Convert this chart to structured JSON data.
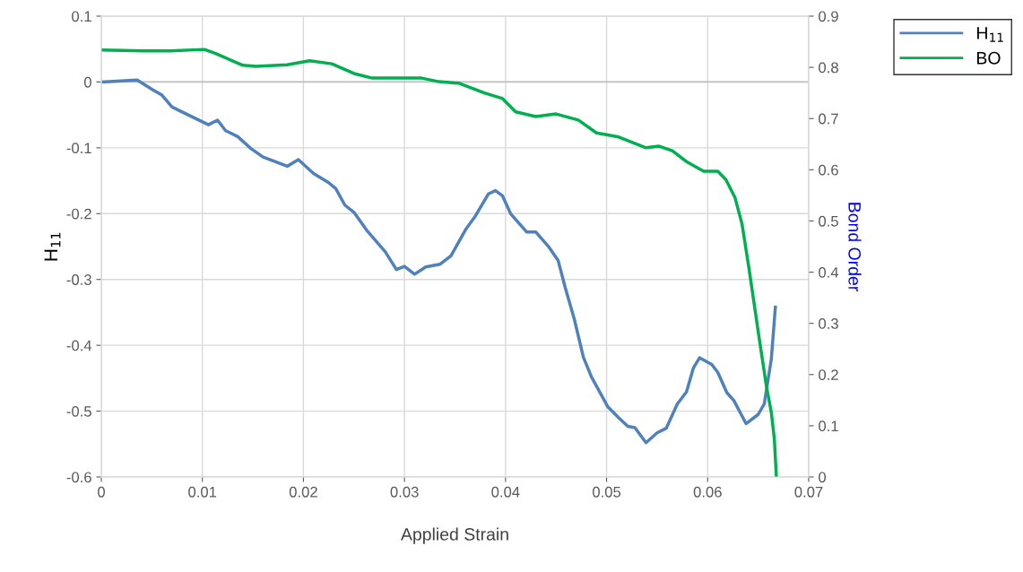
{
  "chart_data": {
    "type": "line",
    "xlabel": "Applied Strain",
    "ylabel": "H$_{11}$",
    "y2label": "Bond Order",
    "xlim": [
      0,
      0.07
    ],
    "xticks": [
      0,
      0.01,
      0.02,
      0.03,
      0.04,
      0.05,
      0.06,
      0.07
    ],
    "ylim": [
      -0.6,
      0.1
    ],
    "yticks": [
      -0.6,
      -0.5,
      -0.4,
      -0.3,
      -0.2,
      -0.1,
      0,
      0.1
    ],
    "y2lim": [
      0,
      0.9
    ],
    "y2ticks": [
      0,
      0.1,
      0.2,
      0.3,
      0.4,
      0.5,
      0.6,
      0.7,
      0.8,
      0.9
    ],
    "grid": true,
    "legend": "top right",
    "marker": "none",
    "line_style": "solid",
    "series": [
      {
        "name": "H$_{11}$",
        "color": "#4f81bd",
        "x": [
          0,
          0.00355,
          0.0051,
          0.006,
          0.007,
          0.009,
          0.0106,
          0.0115,
          0.0123,
          0.0135,
          0.0148,
          0.016,
          0.0177,
          0.0184,
          0.0195,
          0.021,
          0.0225,
          0.0232,
          0.0241,
          0.025,
          0.0263,
          0.0281,
          0.0292,
          0.03,
          0.031,
          0.0321,
          0.0335,
          0.0346,
          0.0361,
          0.037,
          0.0383,
          0.039,
          0.0397,
          0.0405,
          0.0421,
          0.043,
          0.0443,
          0.0452,
          0.0459,
          0.0468,
          0.0477,
          0.0485,
          0.0501,
          0.0512,
          0.0521,
          0.0528,
          0.0539,
          0.055,
          0.0559,
          0.057,
          0.0579,
          0.0586,
          0.0592,
          0.0604,
          0.061,
          0.0619,
          0.0626,
          0.0638,
          0.065,
          0.0656,
          0.0663,
          0.0667
        ],
        "values": [
          0,
          0.003,
          -0.012,
          -0.02,
          -0.038,
          -0.053,
          -0.065,
          -0.058,
          -0.074,
          -0.083,
          -0.101,
          -0.114,
          -0.124,
          -0.128,
          -0.118,
          -0.139,
          -0.153,
          -0.162,
          -0.187,
          -0.198,
          -0.226,
          -0.258,
          -0.285,
          -0.28,
          -0.292,
          -0.281,
          -0.277,
          -0.264,
          -0.223,
          -0.204,
          -0.17,
          -0.165,
          -0.173,
          -0.2,
          -0.228,
          -0.228,
          -0.251,
          -0.271,
          -0.312,
          -0.36,
          -0.418,
          -0.448,
          -0.493,
          -0.51,
          -0.523,
          -0.525,
          -0.548,
          -0.533,
          -0.526,
          -0.489,
          -0.471,
          -0.434,
          -0.419,
          -0.429,
          -0.441,
          -0.472,
          -0.484,
          -0.519,
          -0.505,
          -0.489,
          -0.421,
          -0.342
        ]
      },
      {
        "name": "BO",
        "color": "#00b050",
        "axis": "y2",
        "x": [
          0,
          0.0042,
          0.0068,
          0.0102,
          0.0113,
          0.014,
          0.0153,
          0.0184,
          0.0206,
          0.0228,
          0.025,
          0.0268,
          0.029,
          0.0317,
          0.0334,
          0.0354,
          0.0379,
          0.0397,
          0.041,
          0.043,
          0.045,
          0.0472,
          0.049,
          0.0512,
          0.0539,
          0.0552,
          0.0565,
          0.0579,
          0.0596,
          0.061,
          0.0618,
          0.0627,
          0.0634,
          0.0641,
          0.065,
          0.0658,
          0.0663,
          0.0666,
          0.0668
        ],
        "values": [
          0.834,
          0.832,
          0.832,
          0.835,
          0.827,
          0.804,
          0.802,
          0.805,
          0.813,
          0.807,
          0.788,
          0.779,
          0.779,
          0.779,
          0.772,
          0.769,
          0.75,
          0.739,
          0.713,
          0.704,
          0.709,
          0.697,
          0.672,
          0.664,
          0.643,
          0.646,
          0.637,
          0.616,
          0.597,
          0.597,
          0.581,
          0.546,
          0.494,
          0.406,
          0.284,
          0.179,
          0.126,
          0.074,
          0.0
        ]
      }
    ]
  }
}
